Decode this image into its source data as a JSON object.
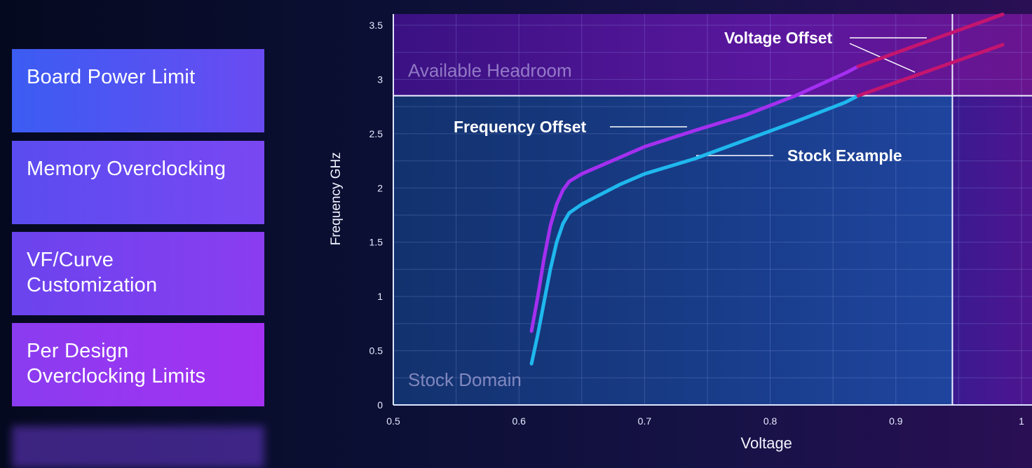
{
  "sidebar": {
    "cards": [
      {
        "label": "Board Power Limit",
        "color_start": "#3b5cf2",
        "color_end": "#6a4bf2"
      },
      {
        "label": "Memory Overclocking",
        "color_start": "#5a4cf0",
        "color_end": "#7a47f2"
      },
      {
        "label": "VF/Curve Customization",
        "color_start": "#6a44ee",
        "color_end": "#8b3df0"
      },
      {
        "label": "Per Design Overclocking Limits",
        "color_start": "#8a3cf0",
        "color_end": "#a431f2"
      }
    ],
    "ghost_card": {
      "label": "",
      "color": "#6a3ad0"
    }
  },
  "chart_data": {
    "type": "line",
    "xlabel": "Voltage",
    "ylabel": "Frequency GHz",
    "xlim": [
      0.5,
      1.0
    ],
    "ylim": [
      0,
      3.5
    ],
    "x_ticks": [
      "0.5",
      "0.6",
      "0.7",
      "0.8",
      "0.9",
      "1"
    ],
    "y_ticks": [
      "0",
      "0.5",
      "1",
      "1.5",
      "2",
      "2.5",
      "3",
      "3.5"
    ],
    "grid": true,
    "threshold_frequency": 2.85,
    "threshold_voltage": 0.945,
    "regions": [
      {
        "label": "Available Headroom"
      },
      {
        "label": "Stock Domain"
      }
    ],
    "series": [
      {
        "name": "Frequency Offset",
        "color": "#a42ff0",
        "x": [
          0.61,
          0.615,
          0.62,
          0.625,
          0.63,
          0.635,
          0.64,
          0.65,
          0.66,
          0.68,
          0.7,
          0.74,
          0.78,
          0.82,
          0.86,
          0.87
        ],
        "y": [
          0.68,
          1.0,
          1.35,
          1.65,
          1.85,
          1.98,
          2.06,
          2.13,
          2.18,
          2.28,
          2.38,
          2.53,
          2.67,
          2.85,
          3.06,
          3.12
        ]
      },
      {
        "name": "Stock Example",
        "color": "#1fb8ee",
        "x": [
          0.61,
          0.615,
          0.62,
          0.625,
          0.63,
          0.635,
          0.64,
          0.65,
          0.66,
          0.68,
          0.7,
          0.74,
          0.78,
          0.82,
          0.86,
          0.87
        ],
        "y": [
          0.38,
          0.65,
          0.95,
          1.25,
          1.5,
          1.67,
          1.77,
          1.85,
          1.91,
          2.03,
          2.13,
          2.27,
          2.44,
          2.61,
          2.79,
          2.85
        ]
      },
      {
        "name": "Voltage Offset",
        "color": "#c4156e",
        "x": [
          0.87,
          0.985
        ],
        "y": [
          3.12,
          3.6
        ]
      },
      {
        "name": "Voltage Offset",
        "color": "#c4156e",
        "x": [
          0.87,
          0.985
        ],
        "y": [
          2.85,
          3.32
        ]
      }
    ],
    "annotations": [
      {
        "text": "Voltage Offset"
      },
      {
        "text": "Frequency Offset"
      },
      {
        "text": "Stock Example"
      }
    ]
  }
}
